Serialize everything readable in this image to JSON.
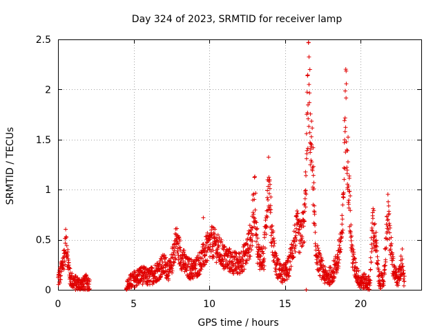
{
  "chart_data": {
    "type": "scatter",
    "title": "Day 324 of 2023, SRMTID for receiver lamp",
    "xlabel": "GPS time / hours",
    "ylabel": "SRMTID / TECUs",
    "xlim": [
      0,
      24
    ],
    "ylim": [
      0,
      2.5
    ],
    "x_ticks": [
      0,
      5,
      10,
      15,
      20
    ],
    "x_tick_labels": [
      "0",
      "5",
      "10",
      "15",
      "20"
    ],
    "y_ticks": [
      0,
      0.5,
      1,
      1.5,
      2,
      2.5
    ],
    "y_tick_labels": [
      "0",
      "0.5",
      "1",
      "1.5",
      "2",
      "2.5"
    ],
    "grid": true,
    "marker": "+",
    "color": "#e00000",
    "series": [
      {
        "name": "SRMTID",
        "profile": [
          [
            0.0,
            0.1
          ],
          [
            0.15,
            0.15
          ],
          [
            0.3,
            0.25
          ],
          [
            0.45,
            0.38
          ],
          [
            0.55,
            0.5
          ],
          [
            0.65,
            0.3
          ],
          [
            0.8,
            0.12
          ],
          [
            1.0,
            0.08
          ],
          [
            1.3,
            0.06
          ],
          [
            1.6,
            0.05
          ],
          [
            1.9,
            0.08
          ],
          [
            2.1,
            0.05
          ],
          [
            4.5,
            0.02
          ],
          [
            4.8,
            0.08
          ],
          [
            5.2,
            0.12
          ],
          [
            5.5,
            0.15
          ],
          [
            6.0,
            0.12
          ],
          [
            6.5,
            0.18
          ],
          [
            7.0,
            0.25
          ],
          [
            7.4,
            0.18
          ],
          [
            7.8,
            0.5
          ],
          [
            8.1,
            0.35
          ],
          [
            8.5,
            0.22
          ],
          [
            9.0,
            0.2
          ],
          [
            9.5,
            0.3
          ],
          [
            9.8,
            0.4
          ],
          [
            10.2,
            0.48
          ],
          [
            10.6,
            0.4
          ],
          [
            11.0,
            0.32
          ],
          [
            11.5,
            0.28
          ],
          [
            11.9,
            0.25
          ],
          [
            12.4,
            0.35
          ],
          [
            12.8,
            0.55
          ],
          [
            13.0,
            0.95
          ],
          [
            13.2,
            0.35
          ],
          [
            13.6,
            0.3
          ],
          [
            13.9,
            1.15
          ],
          [
            14.1,
            0.6
          ],
          [
            14.4,
            0.25
          ],
          [
            14.8,
            0.15
          ],
          [
            15.2,
            0.2
          ],
          [
            15.5,
            0.42
          ],
          [
            15.8,
            0.6
          ],
          [
            16.0,
            0.5
          ],
          [
            16.3,
            0.7
          ],
          [
            16.55,
            2.13
          ],
          [
            16.7,
            1.5
          ],
          [
            16.85,
            1.15
          ],
          [
            17.0,
            0.4
          ],
          [
            17.3,
            0.25
          ],
          [
            17.7,
            0.12
          ],
          [
            18.1,
            0.15
          ],
          [
            18.5,
            0.3
          ],
          [
            18.8,
            0.6
          ],
          [
            19.0,
            1.9
          ],
          [
            19.2,
            1.1
          ],
          [
            19.4,
            0.4
          ],
          [
            19.6,
            0.22
          ],
          [
            19.9,
            0.1
          ],
          [
            20.3,
            0.08
          ],
          [
            20.6,
            0.06
          ],
          [
            20.8,
            0.7
          ],
          [
            21.0,
            0.45
          ],
          [
            21.2,
            0.1
          ],
          [
            21.5,
            0.08
          ],
          [
            21.8,
            0.75
          ],
          [
            22.0,
            0.4
          ],
          [
            22.2,
            0.15
          ],
          [
            22.5,
            0.12
          ],
          [
            22.75,
            0.3
          ],
          [
            22.9,
            0.05
          ]
        ],
        "gaps": [
          [
            2.2,
            4.45
          ]
        ],
        "isolated_points": [
          [
            16.4,
            0.0
          ],
          [
            9.6,
            0.72
          ]
        ]
      }
    ]
  }
}
